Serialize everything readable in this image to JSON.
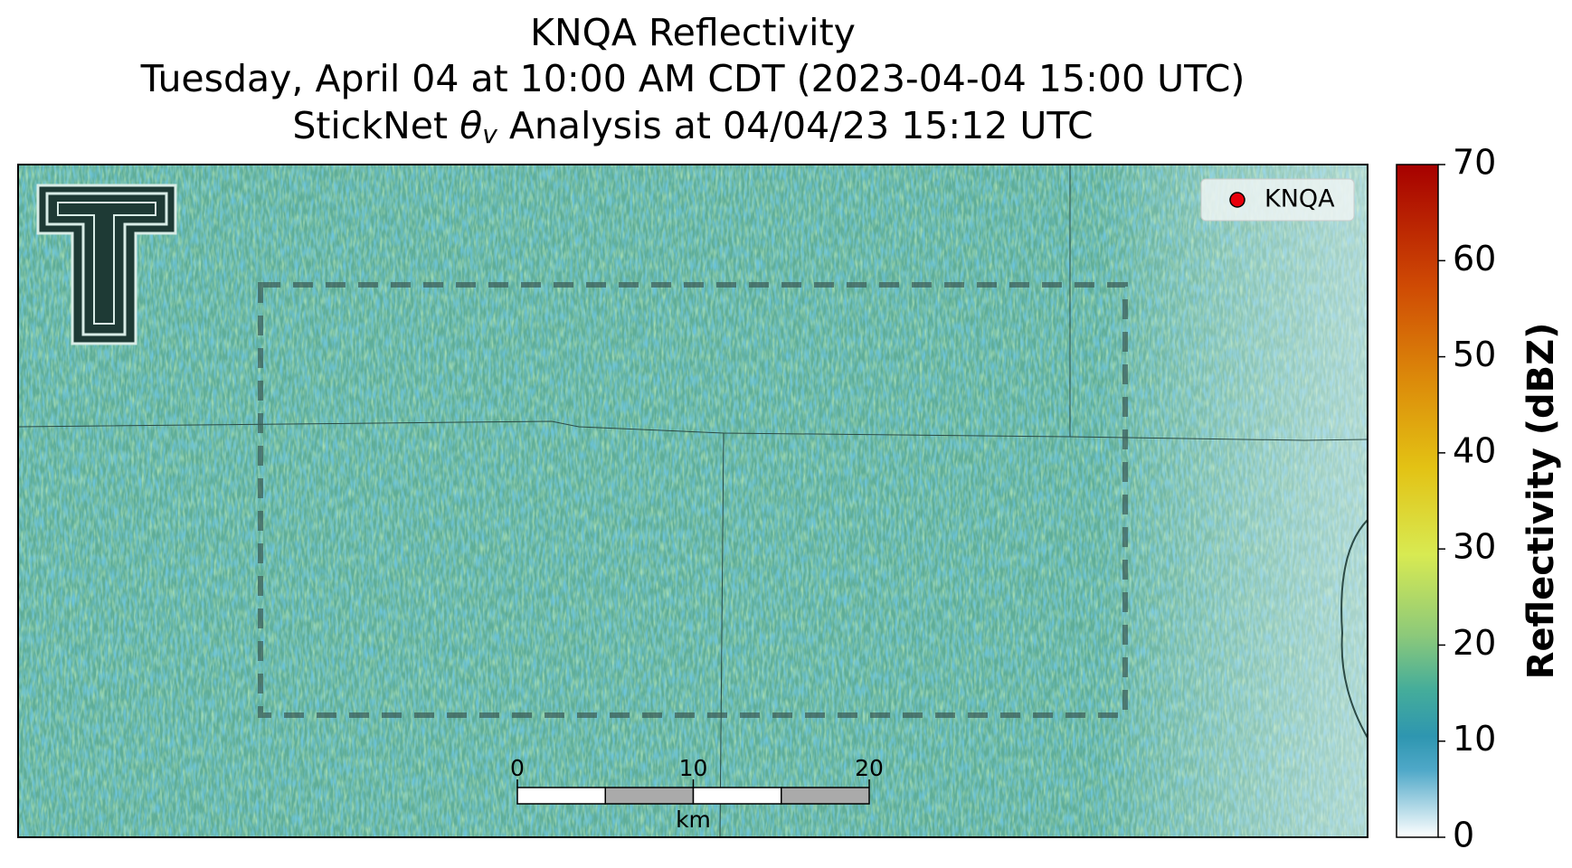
{
  "title": "KNQA Reflectivity",
  "subtitle": "Tuesday, April 04 at 10:00 AM CDT (2023-04-04 15:00 UTC)",
  "subtitle2_parts": [
    "StickNet",
    "θ",
    "v",
    "Analysis at 04/04/23 15:12 UTC"
  ],
  "legend": {
    "label": "KNQA",
    "color": "#e8000b"
  },
  "colorbar": {
    "label": "Reflectivity (dBZ)",
    "lim": [
      0,
      70
    ],
    "ticks": [
      0,
      10,
      20,
      30,
      40,
      50,
      60,
      70
    ]
  },
  "scale_bar": {
    "ticks": [
      0,
      10,
      20
    ],
    "unit": "km"
  }
}
